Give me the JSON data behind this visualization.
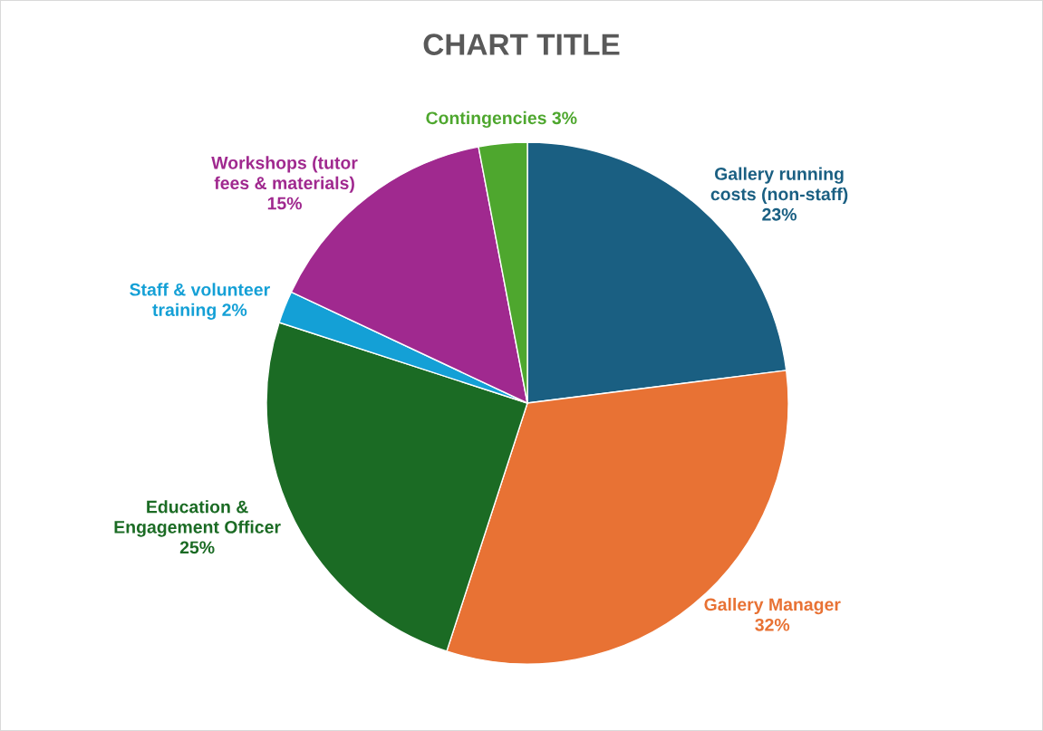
{
  "chart_data": {
    "type": "pie",
    "title": "CHART TITLE",
    "categories": [
      "Gallery running costs (non-staff)",
      "Gallery Manager",
      "Education & Engagement Officer",
      "Staff & volunteer training",
      "Workshops (tutor fees & materials)",
      "Contingencies"
    ],
    "values": [
      23,
      32,
      25,
      2,
      15,
      3
    ],
    "value_labels": [
      "23%",
      "32%",
      "25%",
      "2%",
      "15%",
      "3%"
    ],
    "colors": [
      "#1a5f82",
      "#e87234",
      "#1b6b24",
      "#14a0d6",
      "#a0298f",
      "#4ea72e"
    ],
    "legend": false
  }
}
